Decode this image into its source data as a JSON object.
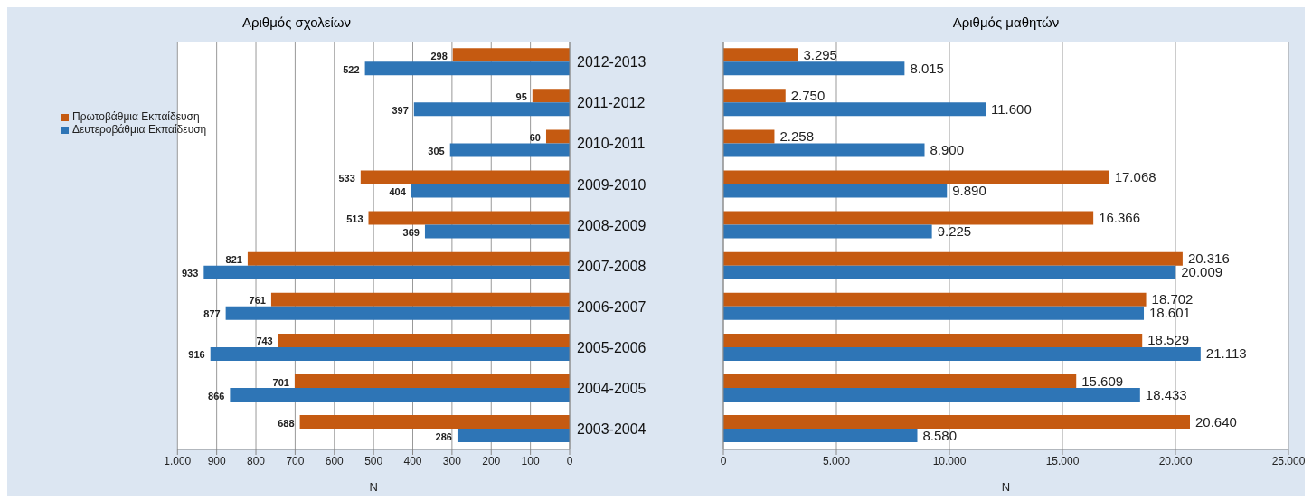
{
  "chart_data": [
    {
      "type": "bar",
      "orientation": "horizontal",
      "title": "Αριθμός σχολείων",
      "xlabel": "N",
      "categories": [
        "2012-2013",
        "2011-2012",
        "2010-2011",
        "2009-2010",
        "2008-2009",
        "2007-2008",
        "2006-2007",
        "2005-2006",
        "2004-2005",
        "2003-2004"
      ],
      "series": [
        {
          "name": "Πρωτοβάθμια  Εκπαίδευση",
          "color": "#c55a11",
          "values": [
            298,
            95,
            60,
            533,
            513,
            821,
            761,
            743,
            701,
            688
          ]
        },
        {
          "name": "Δευτεροβάθμια Εκπαίδευση",
          "color": "#2e75b6",
          "values": [
            522,
            397,
            305,
            404,
            369,
            933,
            877,
            916,
            866,
            286
          ]
        }
      ],
      "xlim": [
        1000,
        0
      ],
      "xticks": [
        {
          "value": 1000,
          "label": "1.000"
        },
        900,
        800,
        700,
        600,
        500,
        400,
        300,
        200,
        100,
        0
      ],
      "grid": "x",
      "legend": "top left",
      "data_labels": true
    },
    {
      "type": "bar",
      "orientation": "horizontal",
      "title": "Αριθμός μαθητών",
      "xlabel": "N",
      "categories": [
        null,
        null,
        null,
        null,
        null,
        null,
        null,
        null,
        null,
        null
      ],
      "series": [
        {
          "color": "#c55a11",
          "values": [
            3295,
            2750,
            2258,
            17068,
            16366,
            20316,
            18702,
            18529,
            15609,
            20640
          ],
          "value_labels": [
            "3.295",
            "2.750",
            "2.258",
            "17.068",
            "16.366",
            "20.316",
            "18.702",
            "18.529",
            "15.609",
            "20.640"
          ]
        },
        {
          "color": "#2e75b6",
          "values": [
            8015,
            11600,
            8900,
            9890,
            9225,
            20009,
            18601,
            21113,
            18433,
            8580
          ],
          "value_labels": [
            "8.015",
            "11.600",
            "8.900",
            "9.890",
            "9.225",
            "20.009",
            "18.601",
            "21.113",
            "18.433",
            "8.580"
          ]
        }
      ],
      "xlim": [
        0,
        25000
      ],
      "xticks": [
        0,
        {
          "value": 5000,
          "label": "5.000"
        },
        {
          "value": 10000,
          "label": "10.000"
        },
        {
          "value": 15000,
          "label": "15.000"
        },
        {
          "value": 20000,
          "label": "20.000"
        },
        {
          "value": 25000,
          "label": "25.000"
        }
      ],
      "grid": "x",
      "tick_labels": "x"
    }
  ]
}
